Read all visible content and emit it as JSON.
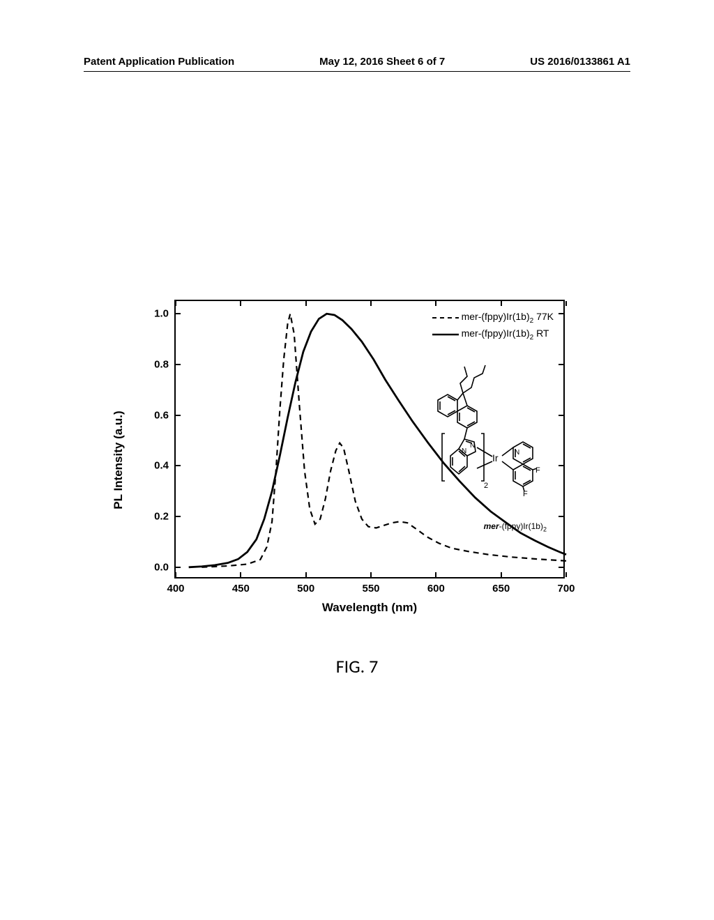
{
  "header": {
    "left": "Patent Application Publication",
    "center": "May 12, 2016  Sheet 6 of 7",
    "right": "US 2016/0133861 A1"
  },
  "figure_label": "FIG. 7",
  "chart": {
    "type": "line",
    "x_label": "Wavelength (nm)",
    "y_label": "PL Intensity (a.u.)",
    "xlim": [
      400,
      700
    ],
    "ylim": [
      -0.05,
      1.05
    ],
    "x_ticks": [
      400,
      450,
      500,
      550,
      600,
      650,
      700
    ],
    "y_ticks": [
      0.0,
      0.2,
      0.4,
      0.6,
      0.8,
      1.0
    ],
    "y_tick_labels": [
      "0.0",
      "0.2",
      "0.4",
      "0.6",
      "0.8",
      "1.0"
    ],
    "background_color": "#ffffff",
    "axis_color": "#000000",
    "font_weight": "bold",
    "label_fontsize": 17,
    "tick_fontsize": 15,
    "series": [
      {
        "name": "mer-(fppy)Ir(1b)₂ 77K",
        "legend_label_html": "mer-(fppy)Ir(1b)<span class=\"sub\">2</span> 77K",
        "style": "dashed",
        "dash_pattern": "8,6",
        "color": "#000000",
        "line_width": 2.2,
        "points": [
          [
            420,
            0.0
          ],
          [
            440,
            0.005
          ],
          [
            455,
            0.012
          ],
          [
            465,
            0.03
          ],
          [
            470,
            0.08
          ],
          [
            474,
            0.18
          ],
          [
            477,
            0.38
          ],
          [
            480,
            0.62
          ],
          [
            483,
            0.82
          ],
          [
            486,
            0.96
          ],
          [
            488,
            1.0
          ],
          [
            491,
            0.92
          ],
          [
            495,
            0.64
          ],
          [
            499,
            0.38
          ],
          [
            503,
            0.23
          ],
          [
            507,
            0.17
          ],
          [
            511,
            0.19
          ],
          [
            515,
            0.27
          ],
          [
            519,
            0.38
          ],
          [
            523,
            0.46
          ],
          [
            526,
            0.49
          ],
          [
            529,
            0.47
          ],
          [
            533,
            0.38
          ],
          [
            538,
            0.26
          ],
          [
            543,
            0.19
          ],
          [
            548,
            0.16
          ],
          [
            554,
            0.155
          ],
          [
            560,
            0.165
          ],
          [
            566,
            0.175
          ],
          [
            572,
            0.18
          ],
          [
            578,
            0.175
          ],
          [
            585,
            0.15
          ],
          [
            593,
            0.12
          ],
          [
            602,
            0.095
          ],
          [
            612,
            0.075
          ],
          [
            625,
            0.062
          ],
          [
            640,
            0.05
          ],
          [
            658,
            0.04
          ],
          [
            678,
            0.032
          ],
          [
            700,
            0.025
          ]
        ]
      },
      {
        "name": "mer-(fppy)Ir(1b)₂ RT",
        "legend_label_html": "mer-(fppy)Ir(1b)<span class=\"sub\">2</span> RT",
        "style": "solid",
        "color": "#000000",
        "line_width": 2.8,
        "points": [
          [
            410,
            0.0
          ],
          [
            420,
            0.003
          ],
          [
            430,
            0.008
          ],
          [
            440,
            0.017
          ],
          [
            448,
            0.032
          ],
          [
            455,
            0.06
          ],
          [
            462,
            0.11
          ],
          [
            468,
            0.19
          ],
          [
            474,
            0.3
          ],
          [
            480,
            0.44
          ],
          [
            486,
            0.59
          ],
          [
            492,
            0.73
          ],
          [
            498,
            0.85
          ],
          [
            504,
            0.93
          ],
          [
            510,
            0.98
          ],
          [
            516,
            1.0
          ],
          [
            522,
            0.995
          ],
          [
            528,
            0.975
          ],
          [
            535,
            0.94
          ],
          [
            543,
            0.89
          ],
          [
            552,
            0.82
          ],
          [
            561,
            0.74
          ],
          [
            571,
            0.66
          ],
          [
            582,
            0.575
          ],
          [
            594,
            0.49
          ],
          [
            606,
            0.41
          ],
          [
            618,
            0.34
          ],
          [
            630,
            0.275
          ],
          [
            642,
            0.22
          ],
          [
            654,
            0.175
          ],
          [
            665,
            0.135
          ],
          [
            676,
            0.105
          ],
          [
            686,
            0.08
          ],
          [
            695,
            0.06
          ],
          [
            700,
            0.05
          ]
        ]
      }
    ],
    "molecule_caption": {
      "prefix_italic": "mer",
      "rest": "-(fppy)Ir(1b)",
      "sub": "2"
    }
  }
}
